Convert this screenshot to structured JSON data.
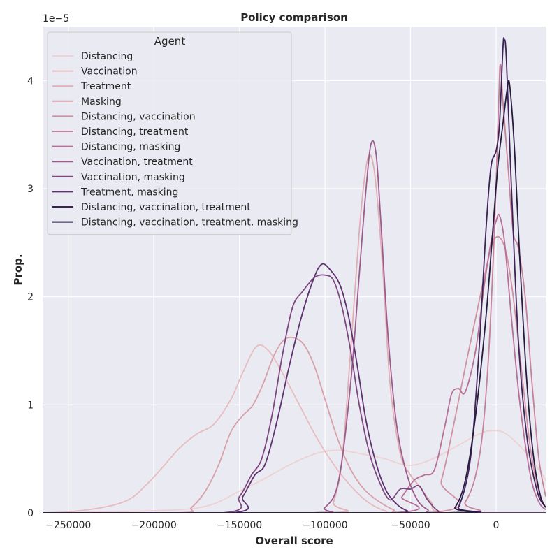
{
  "chart_data": {
    "type": "line",
    "title": "Policy comparison",
    "xlabel": "Overall score",
    "ylabel": "Prop.",
    "y_offset_label": "1e−5",
    "xlim": [
      -265000,
      29000
    ],
    "ylim": [
      0,
      4.5
    ],
    "x_ticks": [
      -250000,
      -200000,
      -150000,
      -100000,
      -50000,
      0
    ],
    "x_tick_labels": [
      "−250000",
      "−200000",
      "−150000",
      "−100000",
      "−50000",
      "0"
    ],
    "y_ticks": [
      0,
      1,
      2,
      3,
      4
    ],
    "y_tick_labels": [
      "0",
      "1",
      "2",
      "3",
      "4"
    ],
    "grid": true,
    "legend": {
      "title": "Agent",
      "placement": "top-left"
    },
    "series": [
      {
        "name": "Distancing",
        "color": "#efd1d1",
        "points": [
          [
            -265000,
            0
          ],
          [
            -200000,
            0.02
          ],
          [
            -170000,
            0.06
          ],
          [
            -150000,
            0.2
          ],
          [
            -135000,
            0.32
          ],
          [
            -120000,
            0.45
          ],
          [
            -105000,
            0.55
          ],
          [
            -92000,
            0.58
          ],
          [
            -80000,
            0.55
          ],
          [
            -65000,
            0.5
          ],
          [
            -52000,
            0.44
          ],
          [
            -40000,
            0.48
          ],
          [
            -25000,
            0.6
          ],
          [
            -10000,
            0.73
          ],
          [
            -3000,
            0.76
          ],
          [
            5000,
            0.74
          ],
          [
            15000,
            0.6
          ],
          [
            25000,
            0.4
          ],
          [
            29000,
            0.3
          ]
        ]
      },
      {
        "name": "Vaccination",
        "color": "#e8bcbf",
        "points": [
          [
            -265000,
            0
          ],
          [
            -250000,
            0.01
          ],
          [
            -230000,
            0.05
          ],
          [
            -215000,
            0.12
          ],
          [
            -205000,
            0.25
          ],
          [
            -195000,
            0.42
          ],
          [
            -185000,
            0.6
          ],
          [
            -175000,
            0.73
          ],
          [
            -165000,
            0.82
          ],
          [
            -155000,
            1.05
          ],
          [
            -148000,
            1.3
          ],
          [
            -140000,
            1.54
          ],
          [
            -133000,
            1.5
          ],
          [
            -125000,
            1.3
          ],
          [
            -115000,
            1.0
          ],
          [
            -105000,
            0.7
          ],
          [
            -95000,
            0.45
          ],
          [
            -85000,
            0.25
          ],
          [
            -75000,
            0.1
          ],
          [
            -65000,
            0.02
          ],
          [
            -55000,
            0
          ],
          [
            29000,
            0
          ]
        ]
      },
      {
        "name": "Treatment",
        "color": "#e0aeb3",
        "points": [
          [
            -265000,
            0
          ],
          [
            -100000,
            0
          ],
          [
            -95000,
            0.1
          ],
          [
            -90000,
            0.5
          ],
          [
            -85000,
            1.5
          ],
          [
            -80000,
            2.6
          ],
          [
            -76000,
            3.2
          ],
          [
            -73000,
            3.3
          ],
          [
            -70000,
            3.0
          ],
          [
            -66000,
            2.2
          ],
          [
            -62000,
            1.2
          ],
          [
            -56000,
            0.55
          ],
          [
            -50000,
            0.35
          ],
          [
            -45000,
            0.25
          ],
          [
            -38000,
            0.1
          ],
          [
            -30000,
            0
          ],
          [
            29000,
            0
          ]
        ]
      },
      {
        "name": "Masking",
        "color": "#d8a0a9",
        "points": [
          [
            -265000,
            0
          ],
          [
            -185000,
            0
          ],
          [
            -178000,
            0.05
          ],
          [
            -170000,
            0.2
          ],
          [
            -162000,
            0.45
          ],
          [
            -155000,
            0.75
          ],
          [
            -148000,
            0.9
          ],
          [
            -142000,
            1.0
          ],
          [
            -136000,
            1.2
          ],
          [
            -130000,
            1.45
          ],
          [
            -124000,
            1.6
          ],
          [
            -118000,
            1.62
          ],
          [
            -112000,
            1.55
          ],
          [
            -106000,
            1.35
          ],
          [
            -100000,
            1.05
          ],
          [
            -94000,
            0.75
          ],
          [
            -88000,
            0.5
          ],
          [
            -82000,
            0.32
          ],
          [
            -76000,
            0.2
          ],
          [
            -68000,
            0.1
          ],
          [
            -60000,
            0.03
          ],
          [
            -52000,
            0
          ],
          [
            29000,
            0
          ]
        ]
      },
      {
        "name": "Distancing, vaccination",
        "color": "#cf91a1",
        "points": [
          [
            -265000,
            0
          ],
          [
            -40000,
            0
          ],
          [
            -32000,
            0.3
          ],
          [
            -25000,
            0.8
          ],
          [
            -18000,
            1.35
          ],
          [
            -12000,
            1.8
          ],
          [
            -6000,
            2.25
          ],
          [
            -2000,
            2.5
          ],
          [
            2000,
            2.55
          ],
          [
            6000,
            2.4
          ],
          [
            10000,
            2.0
          ],
          [
            15000,
            1.3
          ],
          [
            20000,
            0.6
          ],
          [
            25000,
            0.2
          ],
          [
            29000,
            0.05
          ]
        ]
      },
      {
        "name": "Distancing, treatment",
        "color": "#c6819b",
        "points": [
          [
            -265000,
            0
          ],
          [
            -30000,
            0
          ],
          [
            -18000,
            0.1
          ],
          [
            -10000,
            0.5
          ],
          [
            -5000,
            1.3
          ],
          [
            -1000,
            2.6
          ],
          [
            1500,
            3.8
          ],
          [
            2500,
            4.15
          ],
          [
            4000,
            3.8
          ],
          [
            7000,
            3.2
          ],
          [
            10000,
            2.6
          ],
          [
            13000,
            2.45
          ],
          [
            17000,
            2.0
          ],
          [
            21000,
            1.2
          ],
          [
            25000,
            0.5
          ],
          [
            29000,
            0.15
          ]
        ]
      },
      {
        "name": "Distancing, masking",
        "color": "#b66f97",
        "points": [
          [
            -265000,
            0
          ],
          [
            -62000,
            0
          ],
          [
            -55000,
            0.15
          ],
          [
            -48000,
            0.3
          ],
          [
            -42000,
            0.35
          ],
          [
            -36000,
            0.4
          ],
          [
            -30000,
            0.8
          ],
          [
            -26000,
            1.1
          ],
          [
            -22000,
            1.15
          ],
          [
            -18000,
            1.12
          ],
          [
            -12000,
            1.5
          ],
          [
            -7000,
            2.1
          ],
          [
            -3000,
            2.5
          ],
          [
            0,
            2.7
          ],
          [
            2000,
            2.75
          ],
          [
            5000,
            2.5
          ],
          [
            9000,
            1.8
          ],
          [
            14000,
            1.0
          ],
          [
            20000,
            0.35
          ],
          [
            25000,
            0.1
          ],
          [
            29000,
            0.03
          ]
        ]
      },
      {
        "name": "Vaccination, treatment",
        "color": "#9d5b8d",
        "points": [
          [
            -265000,
            0
          ],
          [
            -110000,
            0
          ],
          [
            -100000,
            0.05
          ],
          [
            -92000,
            0.3
          ],
          [
            -85000,
            1.2
          ],
          [
            -80000,
            2.2
          ],
          [
            -76000,
            3.0
          ],
          [
            -73000,
            3.42
          ],
          [
            -70000,
            3.3
          ],
          [
            -67000,
            2.6
          ],
          [
            -63000,
            1.6
          ],
          [
            -58000,
            0.8
          ],
          [
            -52000,
            0.35
          ],
          [
            -46000,
            0.12
          ],
          [
            -40000,
            0.03
          ],
          [
            -34000,
            0
          ],
          [
            29000,
            0
          ]
        ]
      },
      {
        "name": "Vaccination, masking",
        "color": "#7e4780",
        "points": [
          [
            -265000,
            0
          ],
          [
            -160000,
            0
          ],
          [
            -150000,
            0.15
          ],
          [
            -143000,
            0.35
          ],
          [
            -137000,
            0.5
          ],
          [
            -131000,
            0.9
          ],
          [
            -125000,
            1.45
          ],
          [
            -119000,
            1.9
          ],
          [
            -113000,
            2.05
          ],
          [
            -106000,
            2.18
          ],
          [
            -100000,
            2.2
          ],
          [
            -95000,
            2.15
          ],
          [
            -90000,
            1.9
          ],
          [
            -85000,
            1.5
          ],
          [
            -80000,
            1.0
          ],
          [
            -74000,
            0.55
          ],
          [
            -68000,
            0.28
          ],
          [
            -62000,
            0.12
          ],
          [
            -56000,
            0.22
          ],
          [
            -50000,
            0.22
          ],
          [
            -45000,
            0.25
          ],
          [
            -40000,
            0.12
          ],
          [
            -34000,
            0.02
          ],
          [
            -28000,
            0
          ],
          [
            29000,
            0
          ]
        ]
      },
      {
        "name": "Treatment, masking",
        "color": "#5e3070",
        "points": [
          [
            -265000,
            0
          ],
          [
            -155000,
            0
          ],
          [
            -148000,
            0.15
          ],
          [
            -141000,
            0.35
          ],
          [
            -135000,
            0.45
          ],
          [
            -128000,
            0.85
          ],
          [
            -121000,
            1.35
          ],
          [
            -114000,
            1.8
          ],
          [
            -107000,
            2.15
          ],
          [
            -102000,
            2.3
          ],
          [
            -97000,
            2.25
          ],
          [
            -91000,
            2.1
          ],
          [
            -86000,
            1.8
          ],
          [
            -81000,
            1.35
          ],
          [
            -76000,
            0.85
          ],
          [
            -70000,
            0.45
          ],
          [
            -64000,
            0.2
          ],
          [
            -58000,
            0.08
          ],
          [
            -52000,
            0.02
          ],
          [
            -45000,
            0
          ],
          [
            29000,
            0
          ]
        ]
      },
      {
        "name": "Distancing, vaccination, treatment",
        "color": "#3f2258",
        "points": [
          [
            -265000,
            0
          ],
          [
            -28000,
            0
          ],
          [
            -22000,
            0.05
          ],
          [
            -15000,
            0.5
          ],
          [
            -10000,
            1.5
          ],
          [
            -6000,
            2.6
          ],
          [
            -3000,
            3.2
          ],
          [
            0,
            3.35
          ],
          [
            2000,
            3.6
          ],
          [
            4000,
            4.3
          ],
          [
            4800,
            4.38
          ],
          [
            6000,
            4.2
          ],
          [
            9000,
            3.0
          ],
          [
            13000,
            1.6
          ],
          [
            18000,
            0.7
          ],
          [
            24000,
            0.2
          ],
          [
            29000,
            0.05
          ]
        ]
      },
      {
        "name": "Distancing, vaccination, treatment, masking",
        "color": "#261a3e",
        "points": [
          [
            -265000,
            0
          ],
          [
            -30000,
            0
          ],
          [
            -24000,
            0.05
          ],
          [
            -18000,
            0.3
          ],
          [
            -12000,
            0.9
          ],
          [
            -6000,
            1.8
          ],
          [
            -2000,
            2.6
          ],
          [
            1000,
            3.2
          ],
          [
            4000,
            3.6
          ],
          [
            6500,
            3.92
          ],
          [
            8000,
            3.95
          ],
          [
            11000,
            3.3
          ],
          [
            14000,
            2.3
          ],
          [
            18000,
            1.2
          ],
          [
            22000,
            0.5
          ],
          [
            26000,
            0.15
          ],
          [
            29000,
            0.05
          ]
        ]
      }
    ]
  }
}
